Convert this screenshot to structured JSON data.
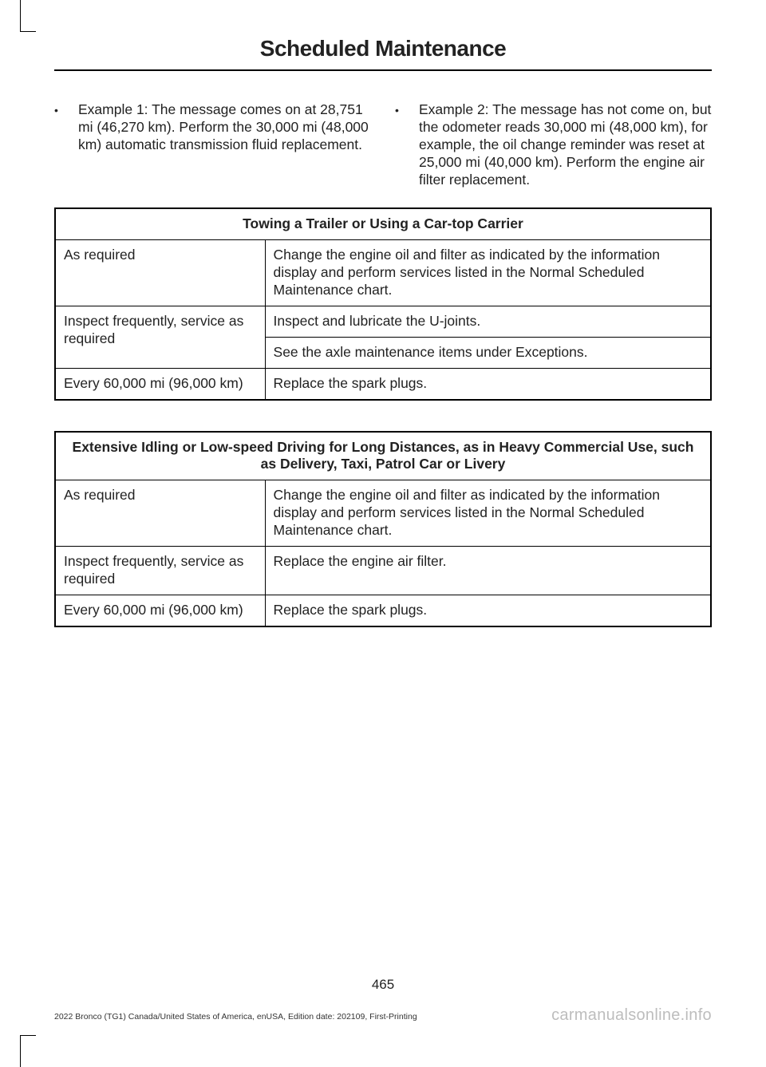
{
  "header": {
    "title": "Scheduled Maintenance"
  },
  "bullets": {
    "left": "Example 1: The message comes on at 28,751 mi (46,270 km). Perform the 30,000 mi (48,000 km) automatic transmission fluid replacement.",
    "right": "Example 2: The message has not come on, but the odometer reads 30,000 mi (48,000 km), for example, the oil change reminder was reset at 25,000 mi (40,000 km). Perform the engine air filter replacement."
  },
  "table1": {
    "title": "Towing a Trailer or Using a Car-top Carrier",
    "rows": {
      "r1c1": "As required",
      "r1c2": "Change the engine oil and filter as indicated by the information display and perform services listed in the Normal Scheduled Maintenance chart.",
      "r2c1": "Inspect frequently, service as required",
      "r2c2a": "Inspect and lubricate the U-joints.",
      "r2c2b": "See the axle maintenance items under Exceptions.",
      "r3c1": "Every 60,000 mi (96,000 km)",
      "r3c2": "Replace the spark plugs."
    }
  },
  "table2": {
    "title": "Extensive Idling or Low-speed Driving for Long Distances, as in Heavy Commercial Use, such as Delivery, Taxi, Patrol Car or Livery",
    "rows": {
      "r1c1": "As required",
      "r1c2": "Change the engine oil and filter as indicated by the information display and perform services listed in the Normal Scheduled Maintenance chart.",
      "r2c1": "Inspect frequently, service as required",
      "r2c2": "Replace the engine air filter.",
      "r3c1": "Every 60,000 mi (96,000 km)",
      "r3c2": "Replace the spark plugs."
    }
  },
  "page_number": "465",
  "footer_left": "2022 Bronco (TG1) Canada/United States of America, enUSA, Edition date: 202109, First-Printing",
  "footer_right": "carmanualsonline.info",
  "colors": {
    "text": "#222222",
    "border": "#000000",
    "watermark": "#bdbdbd",
    "background": "#ffffff"
  }
}
